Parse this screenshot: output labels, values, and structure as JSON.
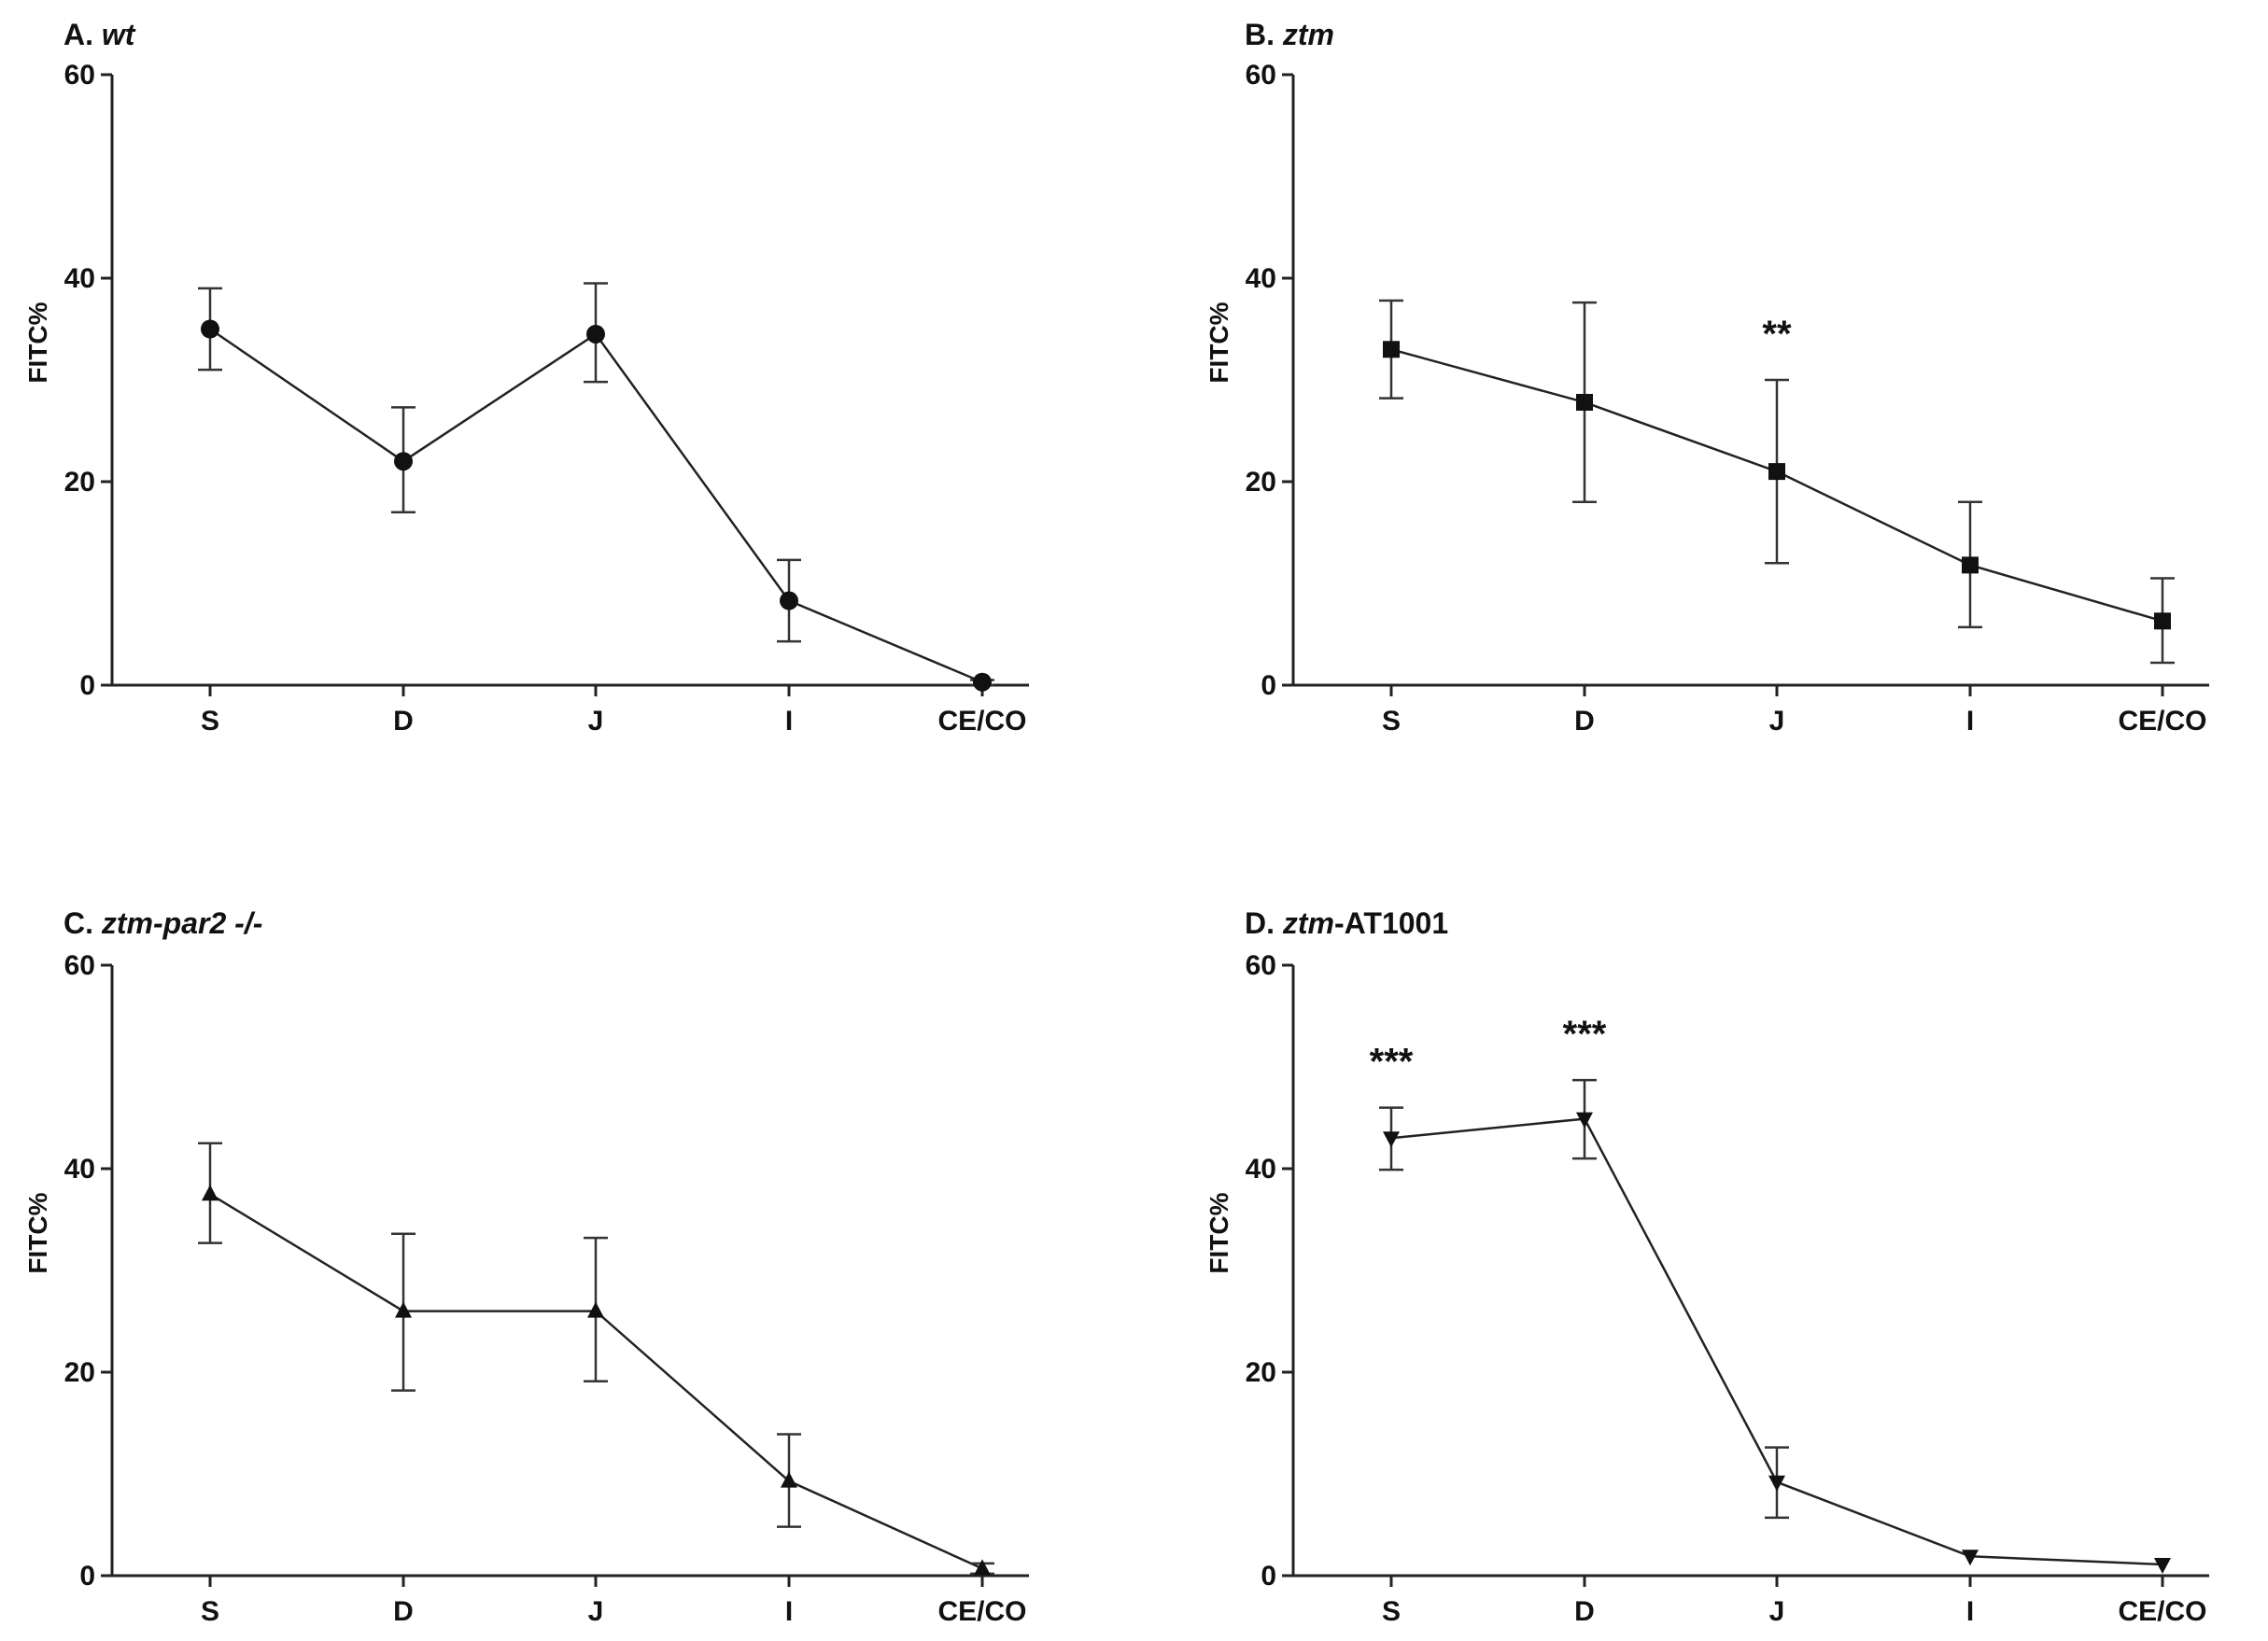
{
  "colors": {
    "ink": "#222222",
    "background": "#ffffff"
  },
  "chart_data": [
    {
      "id": "A",
      "type": "line",
      "title_prefix": "A. ",
      "title_italic": "wt",
      "title_rest": "",
      "marker": "circle",
      "categories": [
        "S",
        "D",
        "J",
        "I",
        "CE/CO"
      ],
      "values": [
        35,
        22,
        34.5,
        8.3,
        0.3
      ],
      "err_low": [
        31,
        17,
        29.8,
        4.3,
        0
      ],
      "err_high": [
        39,
        27.3,
        39.5,
        12.3,
        0.5
      ],
      "annotations": [],
      "ylabel": "FITC%",
      "ylim": [
        0,
        60
      ],
      "yticks": [
        0,
        20,
        40,
        60
      ]
    },
    {
      "id": "B",
      "type": "line",
      "title_prefix": "B. ",
      "title_italic": "ztm",
      "title_rest": "",
      "marker": "square",
      "categories": [
        "S",
        "D",
        "J",
        "I",
        "CE/CO"
      ],
      "values": [
        33,
        27.8,
        21,
        11.8,
        6.3
      ],
      "err_low": [
        28.2,
        18,
        12,
        5.7,
        2.2
      ],
      "err_high": [
        37.8,
        37.6,
        30,
        18,
        10.5
      ],
      "annotations": [
        "",
        "",
        "**",
        "",
        ""
      ],
      "ylabel": "FITC%",
      "ylim": [
        0,
        60
      ],
      "yticks": [
        0,
        20,
        40,
        60
      ]
    },
    {
      "id": "C",
      "type": "line",
      "title_prefix": "C. ",
      "title_italic": "ztm-par2 -/-",
      "title_rest": "",
      "marker": "triangle-up",
      "categories": [
        "S",
        "D",
        "J",
        "I",
        "CE/CO"
      ],
      "values": [
        37.5,
        26,
        26,
        9.3,
        0.7
      ],
      "err_low": [
        32.7,
        18.2,
        19.1,
        4.8,
        0.2
      ],
      "err_high": [
        42.5,
        33.6,
        33.2,
        13.9,
        1.2
      ],
      "annotations": [],
      "ylabel": "FITC%",
      "ylim": [
        0,
        60
      ],
      "yticks": [
        0,
        20,
        40,
        60
      ]
    },
    {
      "id": "D",
      "type": "line",
      "title_prefix": "D. ",
      "title_italic": "ztm",
      "title_rest": "-AT1001",
      "marker": "triangle-down",
      "categories": [
        "S",
        "D",
        "J",
        "I",
        "CE/CO"
      ],
      "values": [
        43,
        44.9,
        9.2,
        1.9,
        1.1
      ],
      "err_low": [
        39.9,
        41,
        5.7,
        1.9,
        1.1
      ],
      "err_high": [
        46,
        48.7,
        12.6,
        1.9,
        1.1
      ],
      "annotations": [
        "***",
        "***",
        "",
        "",
        ""
      ],
      "ylabel": "FITC%",
      "ylim": [
        0,
        60
      ],
      "yticks": [
        0,
        20,
        40,
        60
      ]
    }
  ]
}
